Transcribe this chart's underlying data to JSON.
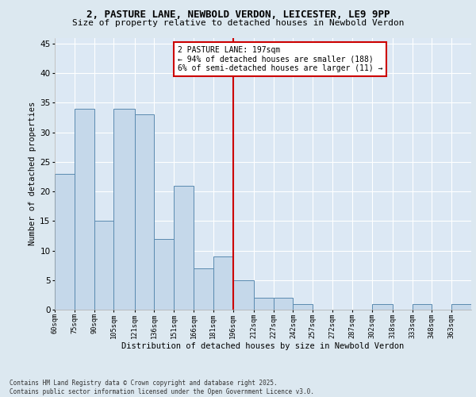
{
  "title_line1": "2, PASTURE LANE, NEWBOLD VERDON, LEICESTER, LE9 9PP",
  "title_line2": "Size of property relative to detached houses in Newbold Verdon",
  "xlabel": "Distribution of detached houses by size in Newbold Verdon",
  "ylabel": "Number of detached properties",
  "bin_labels": [
    "60sqm",
    "75sqm",
    "90sqm",
    "105sqm",
    "121sqm",
    "136sqm",
    "151sqm",
    "166sqm",
    "181sqm",
    "196sqm",
    "212sqm",
    "227sqm",
    "242sqm",
    "257sqm",
    "272sqm",
    "287sqm",
    "302sqm",
    "318sqm",
    "333sqm",
    "348sqm",
    "363sqm"
  ],
  "bin_edges": [
    60,
    75,
    90,
    105,
    121,
    136,
    151,
    166,
    181,
    196,
    212,
    227,
    242,
    257,
    272,
    287,
    302,
    318,
    333,
    348,
    363,
    378
  ],
  "bar_heights": [
    23,
    34,
    15,
    34,
    33,
    12,
    21,
    7,
    9,
    5,
    2,
    2,
    1,
    0,
    0,
    0,
    1,
    0,
    1,
    0,
    1
  ],
  "vline_x": 196,
  "annotation_text": "2 PASTURE LANE: 197sqm\n← 94% of detached houses are smaller (188)\n6% of semi-detached houses are larger (11) →",
  "bar_color": "#c5d8ea",
  "bar_edge_color": "#5a8ab0",
  "vline_color": "#cc0000",
  "annotation_box_color": "#cc0000",
  "bg_color": "#dce8f0",
  "plot_bg_color": "#dce8f4",
  "grid_color": "#ffffff",
  "ylim": [
    0,
    46
  ],
  "yticks": [
    0,
    5,
    10,
    15,
    20,
    25,
    30,
    35,
    40,
    45
  ],
  "footer_text": "Contains HM Land Registry data © Crown copyright and database right 2025.\nContains public sector information licensed under the Open Government Licence v3.0."
}
